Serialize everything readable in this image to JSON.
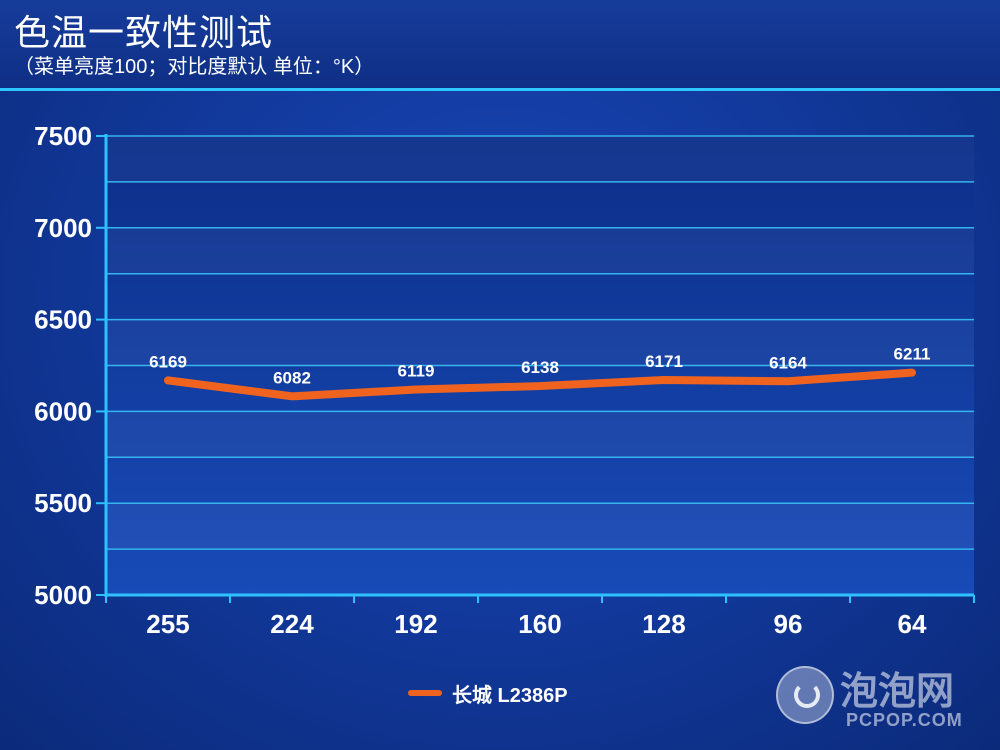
{
  "header": {
    "title": "色温一致性测试",
    "subtitle": "（菜单亮度100；对比度默认 单位：°K）"
  },
  "chart_data": {
    "type": "line",
    "categories": [
      "255",
      "224",
      "192",
      "160",
      "128",
      "96",
      "64"
    ],
    "series": [
      {
        "name": "长城 L2386P",
        "values": [
          6169,
          6082,
          6119,
          6138,
          6171,
          6164,
          6211
        ],
        "color": "#f0631e"
      }
    ],
    "yticks": [
      "5000",
      "5500",
      "6000",
      "6500",
      "7000",
      "7500"
    ],
    "ylim": [
      5000,
      7500
    ],
    "grid": true,
    "legend_position": "bottom-center"
  },
  "logo": {
    "text": "泡泡网",
    "sub": "PCPOP.COM"
  }
}
